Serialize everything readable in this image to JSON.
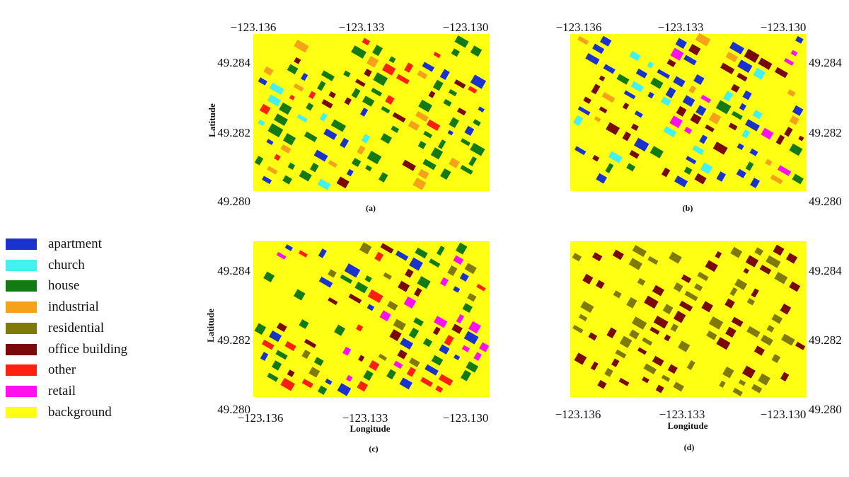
{
  "colors": {
    "apartment": "#1a33cc",
    "church": "#44f0f0",
    "house": "#147a14",
    "industrial": "#f5a21a",
    "residential": "#7f7a0a",
    "office building": "#7a0a0a",
    "other": "#ff2010",
    "retail": "#ff10ee",
    "background": "#ffff14"
  },
  "legend": {
    "items": [
      {
        "label": "apartment",
        "color": "#1a33cc"
      },
      {
        "label": "church",
        "color": "#44f0f0"
      },
      {
        "label": "house",
        "color": "#147a14"
      },
      {
        "label": "industrial",
        "color": "#f5a21a"
      },
      {
        "label": "residential",
        "color": "#7f7a0a"
      },
      {
        "label": "office building",
        "color": "#7a0a0a"
      },
      {
        "label": "other",
        "color": "#ff2010"
      },
      {
        "label": "retail",
        "color": "#ff10ee"
      },
      {
        "label": "background",
        "color": "#ffff14"
      }
    ]
  },
  "axes": {
    "x_ticks": [
      "−123.136",
      "−123.133",
      "−123.130"
    ],
    "y_ticks": [
      "49.284",
      "49.282",
      "49.280"
    ],
    "xlabel": "Longitude",
    "ylabel": "Latitude"
  },
  "panels": [
    {
      "caption": "(a)",
      "palette": [
        "house",
        "house",
        "house",
        "house",
        "house",
        "other",
        "church",
        "apartment",
        "industrial",
        "office building"
      ]
    },
    {
      "caption": "(b)",
      "palette": [
        "office building",
        "office building",
        "apartment",
        "house",
        "retail",
        "church",
        "industrial",
        "office building",
        "apartment"
      ]
    },
    {
      "caption": "(c)",
      "palette": [
        "house",
        "apartment",
        "retail",
        "office building",
        "other",
        "residential",
        "house",
        "apartment"
      ]
    },
    {
      "caption": "(d)",
      "palette": [
        "office building",
        "residential",
        "office building",
        "residential",
        "residential",
        "office building"
      ]
    }
  ]
}
